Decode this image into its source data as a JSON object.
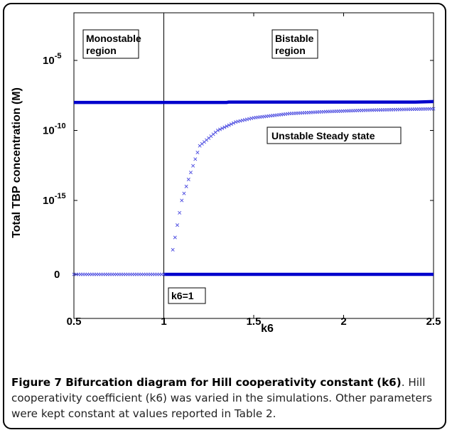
{
  "chart_data": {
    "type": "scatter",
    "title": "",
    "xlabel": "k6",
    "ylabel": "Total TBP concentration (M)",
    "xlim": [
      0.5,
      2.5
    ],
    "xticks": [
      "0.5",
      "1",
      "1.5",
      "2",
      "2.5"
    ],
    "y_scale": "log-like, 10^-5 top",
    "yticks": [
      {
        "label": "10",
        "exp": "-5",
        "value": 1e-05
      },
      {
        "label": "10",
        "exp": "-10",
        "value": 1e-10
      },
      {
        "label": "10",
        "exp": "-15",
        "value": 1e-15
      },
      {
        "label": "0",
        "exp": "",
        "value": 0
      }
    ],
    "vertical_line_x": 1,
    "grid": false,
    "series": [
      {
        "role": "upper_stable",
        "style": "line",
        "color": "#0000cc",
        "x": [
          0.5,
          1.0,
          1.35,
          1.36,
          2.4,
          2.5
        ],
        "y": [
          1e-08,
          1e-08,
          1e-08,
          1.05e-08,
          1.05e-08,
          1.15e-08
        ]
      },
      {
        "role": "lower_stable",
        "style": "line",
        "color": "#0000cc",
        "x": [
          1.0,
          2.5
        ],
        "y": [
          0,
          0
        ]
      },
      {
        "role": "zero_branch_markers",
        "style": "x-markers",
        "color": "#4a4ae0",
        "x_range": [
          0.5,
          1.0
        ],
        "y": 0
      },
      {
        "role": "unstable_markers",
        "style": "x-markers",
        "color": "#4a4ae0",
        "x": [
          1.05,
          1.1,
          1.15,
          1.2,
          1.3,
          1.4,
          1.5,
          1.7,
          1.9,
          2.1,
          2.3,
          2.5
        ],
        "y": [
          3e-19,
          1e-15,
          1e-13,
          8e-12,
          1e-10,
          4e-10,
          8e-10,
          1.6e-09,
          2.2e-09,
          2.7e-09,
          3.1e-09,
          3.5e-09
        ]
      }
    ],
    "annotations": [
      {
        "line1": "Monostable",
        "line2": "region"
      },
      {
        "line1": "Bistable",
        "line2": "region"
      },
      {
        "text": "Unstable Steady state"
      },
      {
        "text": "k6=1"
      }
    ]
  },
  "caption": {
    "label": "Figure 7 Bifurcation diagram for Hill cooperativity constant",
    "label_tail": "(k6)",
    "text_1": ". Hill cooperativity coefficient (k6) was varied in the simulations.",
    "text_2": "Other parameters were kept constant at values reported in Table 2."
  }
}
